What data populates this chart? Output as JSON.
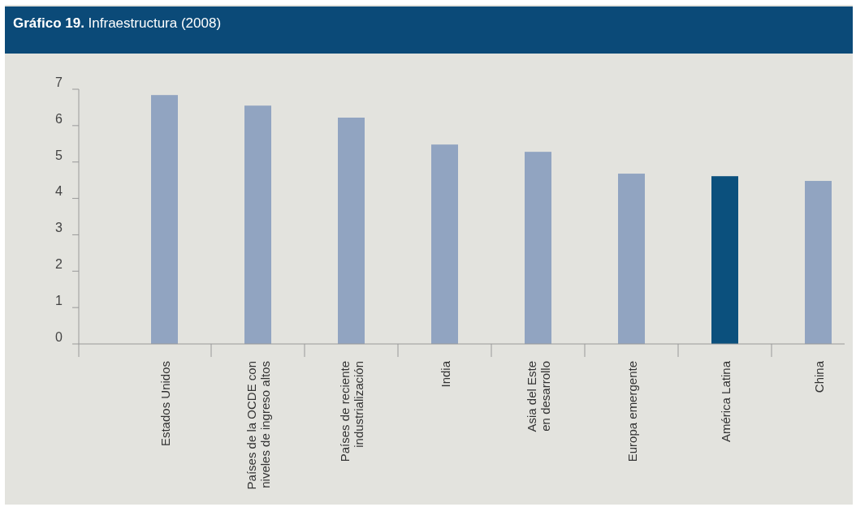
{
  "chart_data": {
    "type": "bar",
    "title": "Gráfico 19. Infraestructura (2008)",
    "categories": [
      "Estados Unidos",
      "Países de la OCDE con\nniveles de ingreso altos",
      "Países de reciente\nindustrialización",
      "India",
      "Asia del Este\nen desarrollo",
      "Europa emergente",
      "América Latina",
      "China"
    ],
    "values": [
      6.84,
      6.55,
      6.22,
      5.48,
      5.28,
      4.68,
      4.61,
      4.48
    ],
    "colors": [
      "#91a4c1",
      "#91a4c1",
      "#91a4c1",
      "#91a4c1",
      "#91a4c1",
      "#91a4c1",
      "#0b507d",
      "#91a4c1"
    ],
    "ylim": [
      0,
      7
    ],
    "yticks": [
      0,
      1,
      2,
      3,
      4,
      5,
      6,
      7
    ]
  }
}
